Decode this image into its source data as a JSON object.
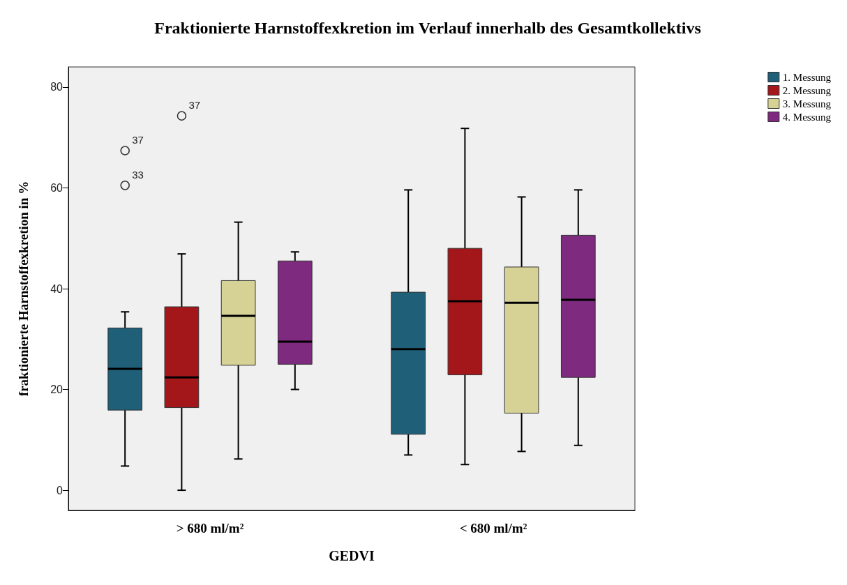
{
  "chart_data": {
    "type": "box",
    "title": "Fraktionierte Harnstoffexkretion im Verlauf innerhalb des Gesamtkollektivs",
    "xlabel": "GEDVI",
    "ylabel": "fraktionierte Harnstoffexkretion in %",
    "categories": [
      "> 680 ml/m²",
      "< 680 ml/m²"
    ],
    "series": [
      {
        "name": "1. Messung",
        "color": "#1f5f78",
        "boxes": [
          {
            "low": 4.8,
            "q1": 15.9,
            "median": 24.1,
            "q3": 32.2,
            "high": 35.4,
            "outliers": [
              60.5,
              67.4
            ]
          },
          {
            "low": 7.0,
            "q1": 11.1,
            "median": 28.0,
            "q3": 39.3,
            "high": 59.6
          }
        ]
      },
      {
        "name": "2. Messung",
        "color": "#a3171b",
        "boxes": [
          {
            "low": 0,
            "q1": 16.4,
            "median": 22.4,
            "q3": 36.4,
            "high": 46.9,
            "outliers": [
              74.3
            ]
          },
          {
            "low": 5.1,
            "q1": 22.9,
            "median": 37.5,
            "q3": 48.0,
            "high": 71.8
          }
        ]
      },
      {
        "name": "3. Messung",
        "color": "#d6d195",
        "boxes": [
          {
            "low": 6.2,
            "q1": 24.8,
            "median": 34.6,
            "q3": 41.6,
            "high": 53.2
          },
          {
            "low": 7.7,
            "q1": 15.3,
            "median": 37.2,
            "q3": 44.3,
            "high": 58.2
          }
        ]
      },
      {
        "name": "4. Messung",
        "color": "#7e2a7f",
        "boxes": [
          {
            "low": 20.0,
            "q1": 25.0,
            "median": 29.5,
            "q3": 45.5,
            "high": 47.3
          },
          {
            "low": 8.9,
            "q1": 22.4,
            "median": 37.8,
            "q3": 50.6,
            "high": 59.6
          }
        ]
      }
    ],
    "annotations": [
      "33",
      "37",
      "37"
    ],
    "ylim": [
      -4,
      84
    ],
    "yticks": [
      0,
      20,
      40,
      60,
      80
    ],
    "grid": false,
    "legend": "top right"
  }
}
